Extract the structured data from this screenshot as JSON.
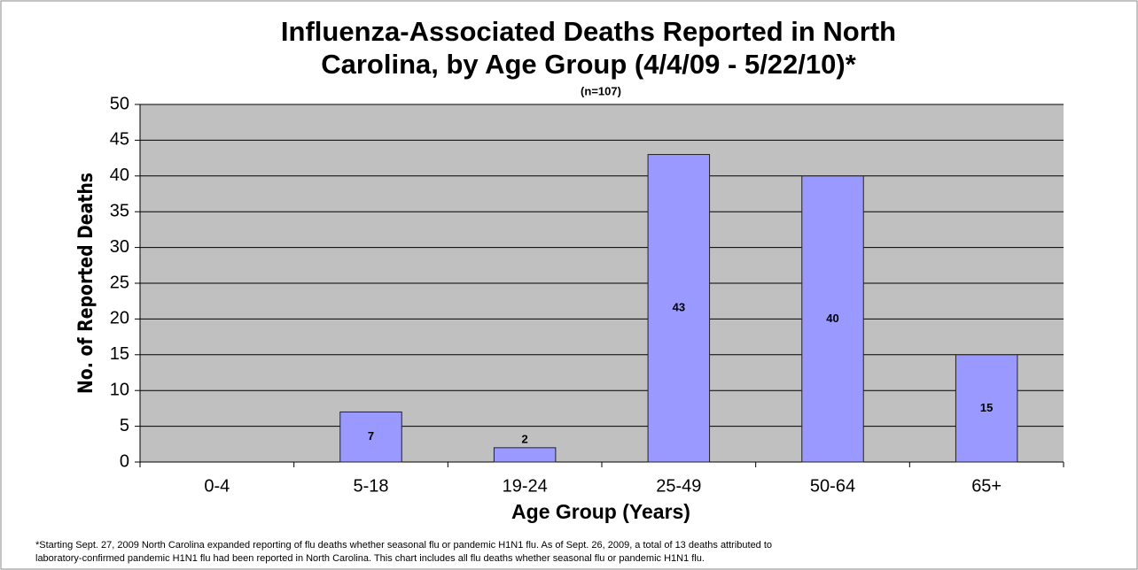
{
  "chart_data": {
    "type": "bar",
    "title": [
      "Influenza-Associated Deaths Reported in North",
      "Carolina, by Age Group (4/4/09 - 5/22/10)*"
    ],
    "subtitle": "(n=107)",
    "x_label": "Age Group (Years)",
    "y_label": "No. of Reported Deaths",
    "categories": [
      "0-4",
      "5-18",
      "19-24",
      "25-49",
      "50-64",
      "65+"
    ],
    "values": [
      0,
      7,
      2,
      43,
      40,
      15
    ],
    "color": "#9999ff",
    "ylim": [
      0,
      50
    ],
    "yticks": [
      0,
      5,
      10,
      15,
      20,
      25,
      30,
      35,
      40,
      45,
      50
    ],
    "grid": true,
    "note": [
      "*Starting Sept. 27, 2009 North Carolina expanded reporting of flu deaths whether seasonal flu or pandemic H1N1 flu. As of Sept. 26, 2009, a total of 13 deaths attributed to",
      "laboratory-confirmed pandemic H1N1 flu had been reported in North Carolina.  This chart includes all flu deaths whether seasonal flu or pandemic H1N1 flu."
    ]
  }
}
